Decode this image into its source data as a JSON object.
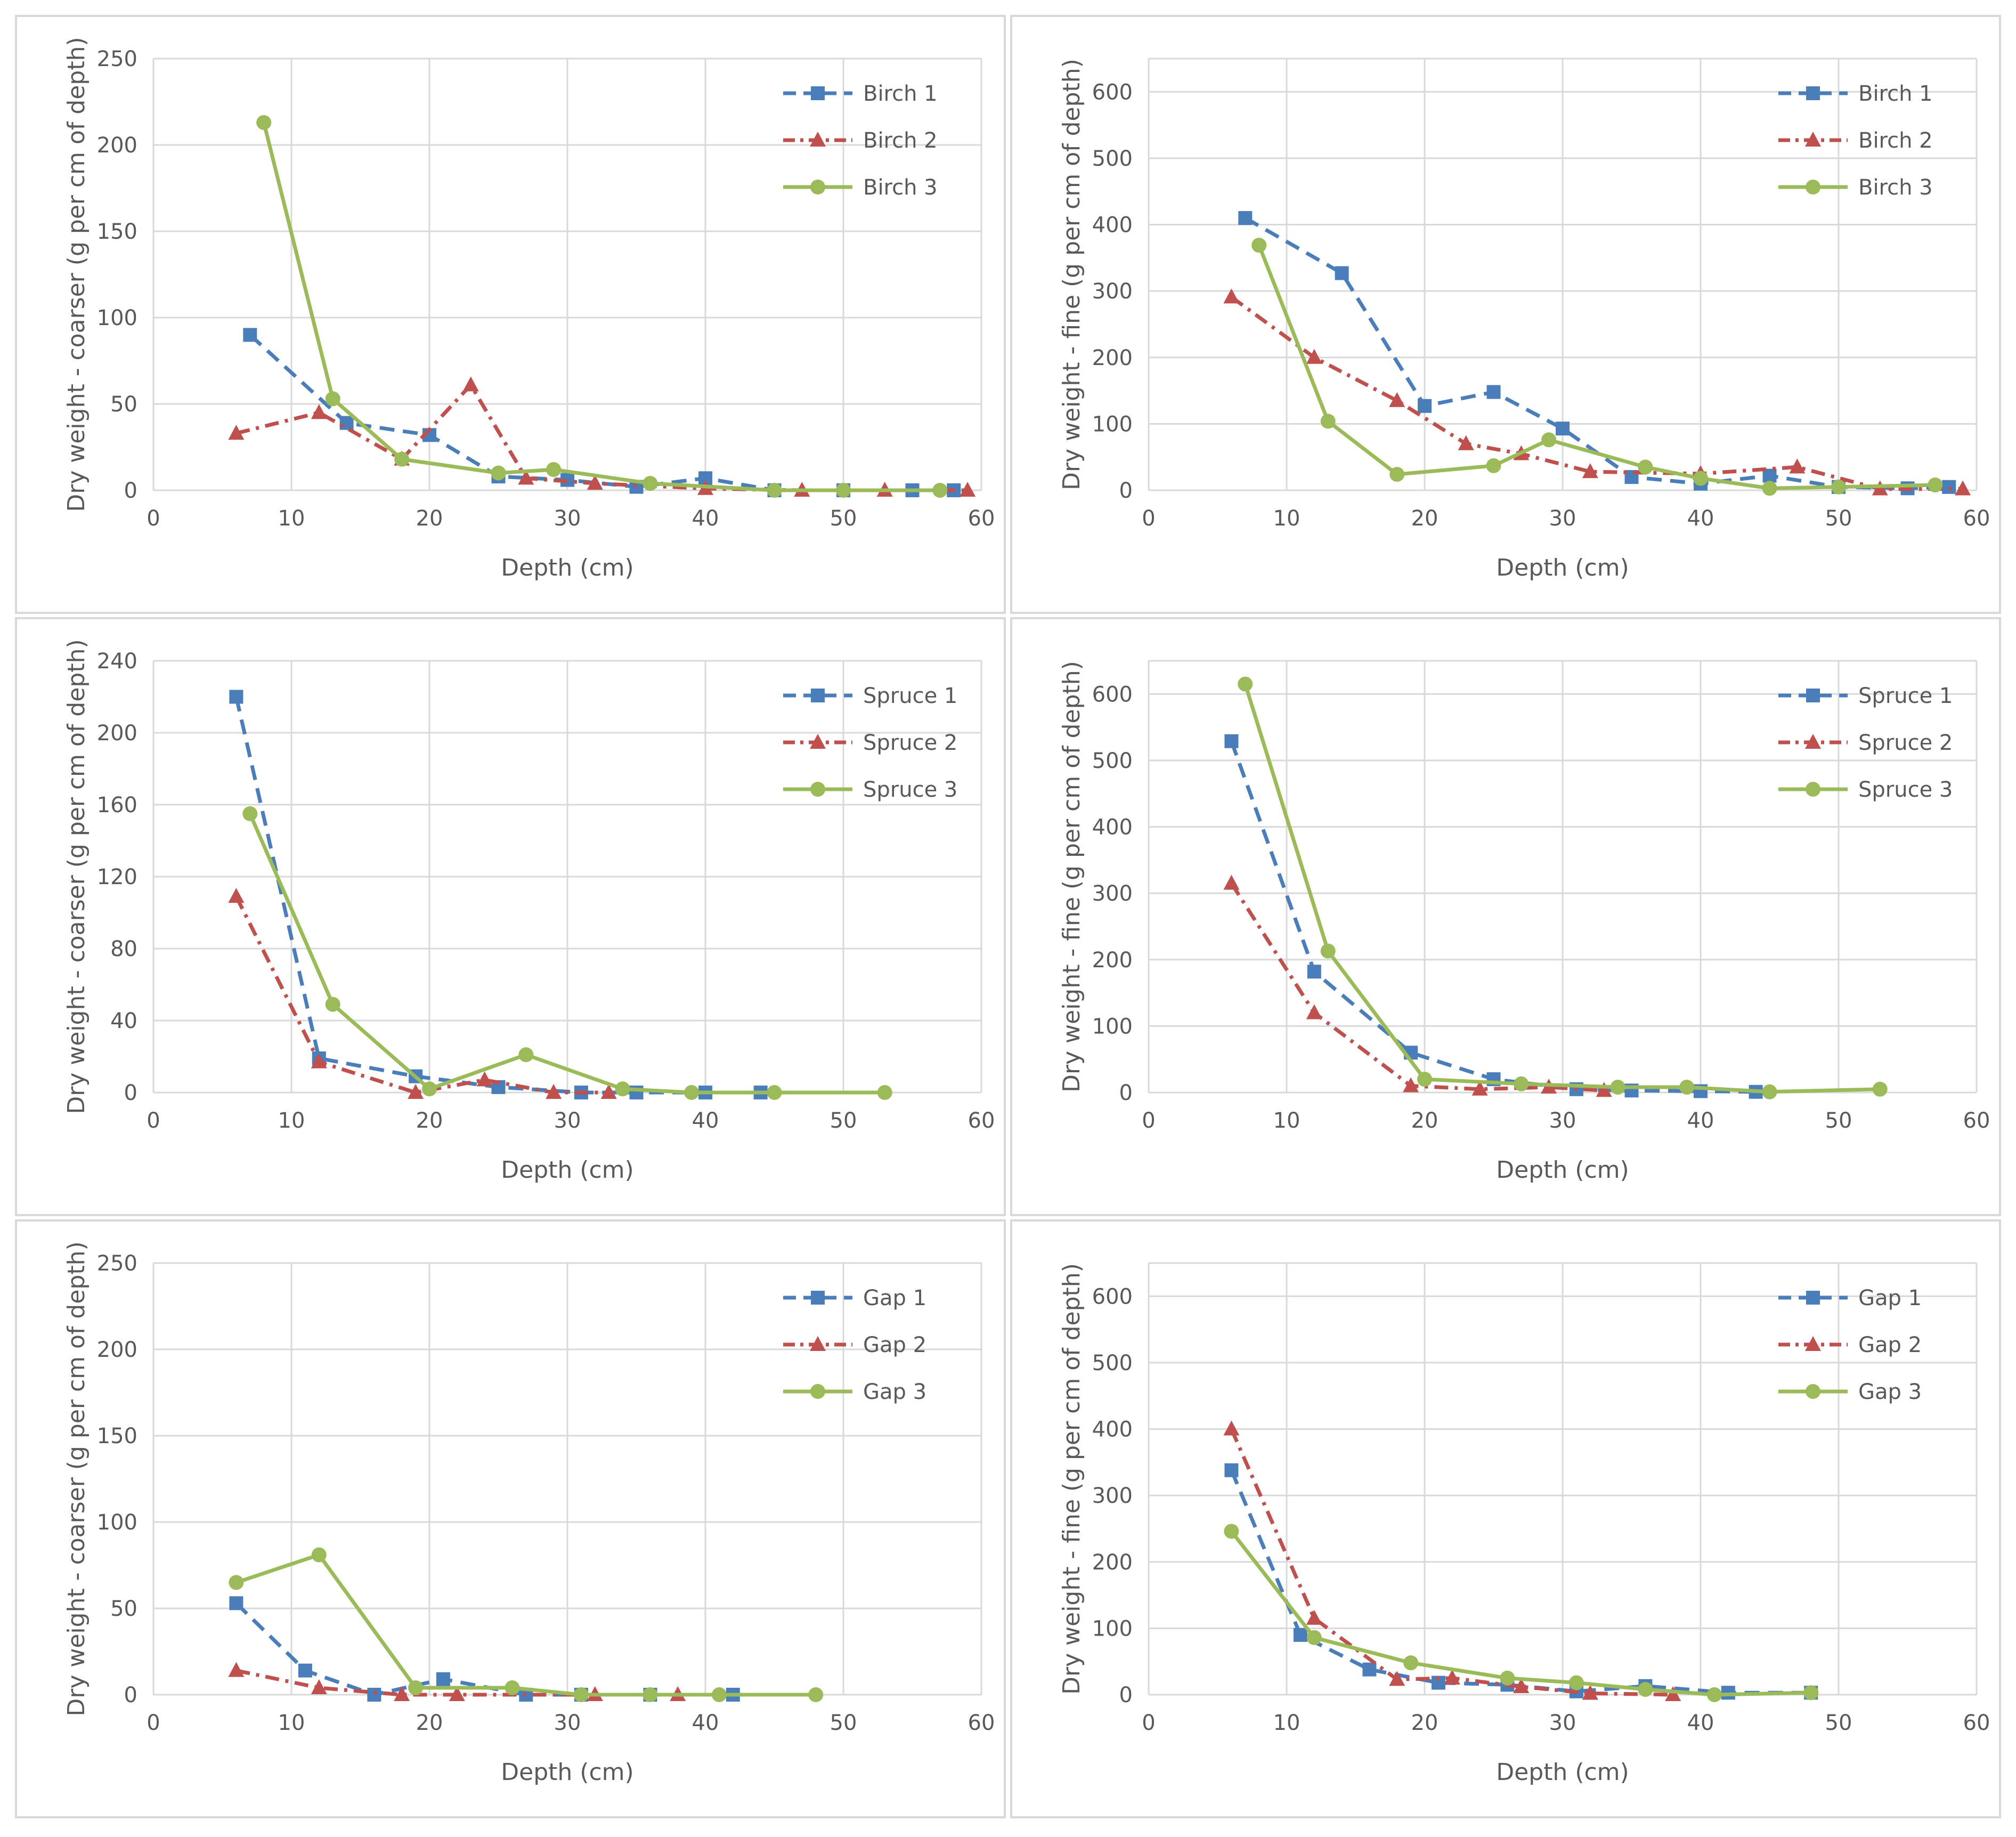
{
  "colors": {
    "series1": "#4A7EBB",
    "series2": "#C0504D",
    "series3": "#9BBB59"
  },
  "chart_data": [
    {
      "type": "line",
      "id": "birch-coarse",
      "xlabel": "Depth (cm)",
      "ylabel": "Dry weight - coarser (g per cm of depth)",
      "xlim": [
        0,
        60
      ],
      "ylim": [
        0,
        250
      ],
      "xticks": [
        0,
        10,
        20,
        30,
        40,
        50,
        60
      ],
      "yticks": [
        0,
        50,
        100,
        150,
        200,
        250
      ],
      "legend": "top-right",
      "series": [
        {
          "name": "Birch 1",
          "marker": "square",
          "dash": "dashed",
          "x": [
            7,
            14,
            20,
            25,
            30,
            35,
            40,
            45,
            50,
            55,
            58
          ],
          "y": [
            90,
            39,
            32,
            8,
            6,
            2,
            7,
            0,
            0,
            0,
            0
          ]
        },
        {
          "name": "Birch 2",
          "marker": "triangle",
          "dash": "dashdot",
          "x": [
            6,
            12,
            18,
            23,
            27,
            32,
            40,
            47,
            53,
            59
          ],
          "y": [
            33,
            45,
            18,
            61,
            7,
            4,
            1,
            0,
            0,
            0
          ]
        },
        {
          "name": "Birch 3",
          "marker": "circle",
          "dash": "solid",
          "x": [
            8,
            13,
            18,
            25,
            29,
            36,
            45,
            50,
            57
          ],
          "y": [
            213,
            53,
            18,
            10,
            12,
            4,
            0,
            0,
            0
          ]
        }
      ]
    },
    {
      "type": "line",
      "id": "birch-fine",
      "xlabel": "Depth (cm)",
      "ylabel": "Dry weight - fine (g per cm of depth)",
      "xlim": [
        0,
        60
      ],
      "ylim": [
        0,
        650
      ],
      "xticks": [
        0,
        10,
        20,
        30,
        40,
        50,
        60
      ],
      "yticks": [
        0,
        100,
        200,
        300,
        400,
        500,
        600
      ],
      "legend": "top-right",
      "series": [
        {
          "name": "Birch 1",
          "marker": "square",
          "dash": "dashed",
          "x": [
            7,
            14,
            20,
            25,
            30,
            35,
            40,
            45,
            50,
            55,
            58
          ],
          "y": [
            410,
            327,
            127,
            148,
            93,
            20,
            10,
            22,
            5,
            3,
            5
          ]
        },
        {
          "name": "Birch 2",
          "marker": "triangle",
          "dash": "dashdot",
          "x": [
            6,
            12,
            18,
            23,
            27,
            32,
            40,
            47,
            53,
            59
          ],
          "y": [
            291,
            200,
            135,
            70,
            55,
            28,
            25,
            35,
            2,
            2
          ]
        },
        {
          "name": "Birch 3",
          "marker": "circle",
          "dash": "solid",
          "x": [
            8,
            13,
            18,
            25,
            29,
            36,
            40,
            45,
            50,
            57
          ],
          "y": [
            369,
            104,
            24,
            37,
            76,
            35,
            18,
            3,
            5,
            8
          ]
        }
      ]
    },
    {
      "type": "line",
      "id": "spruce-coarse",
      "xlabel": "Depth (cm)",
      "ylabel": "Dry weight - coarser (g per cm of depth)",
      "xlim": [
        0,
        60
      ],
      "ylim": [
        0,
        240
      ],
      "xticks": [
        0,
        10,
        20,
        30,
        40,
        50,
        60
      ],
      "yticks": [
        0,
        40,
        80,
        120,
        160,
        200,
        240
      ],
      "legend": "top-right",
      "series": [
        {
          "name": "Spruce 1",
          "marker": "square",
          "dash": "dashed",
          "x": [
            6,
            12,
            19,
            25,
            31,
            35,
            40,
            44
          ],
          "y": [
            220,
            19,
            9,
            3,
            0,
            0,
            0,
            0
          ]
        },
        {
          "name": "Spruce 2",
          "marker": "triangle",
          "dash": "dashdot",
          "x": [
            6,
            12,
            19,
            24,
            29,
            33
          ],
          "y": [
            109,
            17,
            0,
            7,
            0,
            0
          ]
        },
        {
          "name": "Spruce 3",
          "marker": "circle",
          "dash": "solid",
          "x": [
            7,
            13,
            20,
            27,
            34,
            39,
            45,
            53
          ],
          "y": [
            155,
            49,
            2,
            21,
            2,
            0,
            0,
            0
          ]
        }
      ]
    },
    {
      "type": "line",
      "id": "spruce-fine",
      "xlabel": "Depth (cm)",
      "ylabel": "Dry weight - fine (g per cm of depth)",
      "xlim": [
        0,
        60
      ],
      "ylim": [
        0,
        650
      ],
      "xticks": [
        0,
        10,
        20,
        30,
        40,
        50,
        60
      ],
      "yticks": [
        0,
        100,
        200,
        300,
        400,
        500,
        600
      ],
      "legend": "top-right",
      "series": [
        {
          "name": "Spruce 1",
          "marker": "square",
          "dash": "dashed",
          "x": [
            6,
            12,
            19,
            25,
            31,
            35,
            40,
            44
          ],
          "y": [
            529,
            182,
            60,
            20,
            5,
            3,
            2,
            1
          ]
        },
        {
          "name": "Spruce 2",
          "marker": "triangle",
          "dash": "dashdot",
          "x": [
            6,
            12,
            19,
            24,
            29,
            33
          ],
          "y": [
            315,
            120,
            10,
            5,
            8,
            3
          ]
        },
        {
          "name": "Spruce 3",
          "marker": "circle",
          "dash": "solid",
          "x": [
            7,
            13,
            20,
            27,
            34,
            39,
            45,
            53
          ],
          "y": [
            615,
            213,
            20,
            13,
            8,
            8,
            1,
            5
          ]
        }
      ]
    },
    {
      "type": "line",
      "id": "gap-coarse",
      "xlabel": "Depth (cm)",
      "ylabel": "Dry weight - coarser (g per cm of depth)",
      "xlim": [
        0,
        60
      ],
      "ylim": [
        0,
        250
      ],
      "xticks": [
        0,
        10,
        20,
        30,
        40,
        50,
        60
      ],
      "yticks": [
        0,
        50,
        100,
        150,
        200,
        250
      ],
      "legend": "top-right",
      "series": [
        {
          "name": "Gap 1",
          "marker": "square",
          "dash": "dashed",
          "x": [
            6,
            11,
            16,
            21,
            27,
            31,
            36,
            42
          ],
          "y": [
            53,
            14,
            0,
            9,
            0,
            0,
            0,
            0
          ]
        },
        {
          "name": "Gap 2",
          "marker": "triangle",
          "dash": "dashdot",
          "x": [
            6,
            12,
            18,
            22,
            32,
            38
          ],
          "y": [
            14,
            4,
            0,
            0,
            0,
            0
          ]
        },
        {
          "name": "Gap 3",
          "marker": "circle",
          "dash": "solid",
          "x": [
            6,
            12,
            19,
            26,
            31,
            36,
            41,
            48
          ],
          "y": [
            65,
            81,
            4,
            4,
            0,
            0,
            0,
            0
          ]
        }
      ]
    },
    {
      "type": "line",
      "id": "gap-fine",
      "xlabel": "Depth (cm)",
      "ylabel": "Dry weight - fine (g per cm of depth)",
      "xlim": [
        0,
        60
      ],
      "ylim": [
        0,
        650
      ],
      "xticks": [
        0,
        10,
        20,
        30,
        40,
        50,
        60
      ],
      "yticks": [
        0,
        100,
        200,
        300,
        400,
        500,
        600
      ],
      "legend": "top-right",
      "series": [
        {
          "name": "Gap 1",
          "marker": "square",
          "dash": "dashed",
          "x": [
            6,
            11,
            16,
            21,
            26,
            31,
            36,
            42,
            48
          ],
          "y": [
            338,
            90,
            38,
            18,
            15,
            5,
            13,
            3,
            3
          ]
        },
        {
          "name": "Gap 2",
          "marker": "triangle",
          "dash": "dashdot",
          "x": [
            6,
            12,
            18,
            22,
            27,
            32,
            38
          ],
          "y": [
            400,
            115,
            23,
            25,
            12,
            2,
            0
          ]
        },
        {
          "name": "Gap 3",
          "marker": "circle",
          "dash": "solid",
          "x": [
            6,
            12,
            19,
            26,
            31,
            36,
            41,
            48
          ],
          "y": [
            246,
            86,
            48,
            25,
            18,
            8,
            0,
            3
          ]
        }
      ]
    }
  ]
}
